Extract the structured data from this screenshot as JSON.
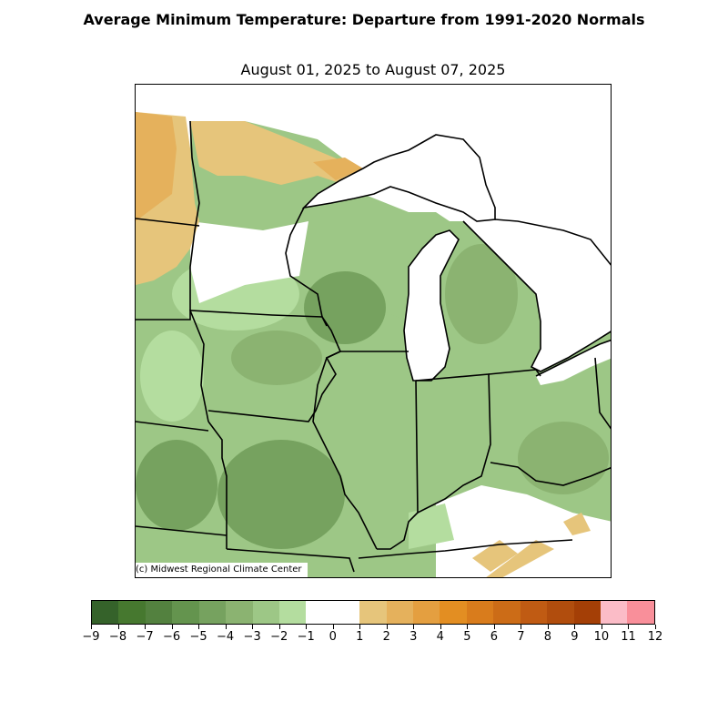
{
  "title": "Average Minimum Temperature: Departure from 1991-2020 Normals",
  "subtitle": "August 01, 2025 to August 07, 2025",
  "credit": "(c) Midwest Regional Climate Center",
  "colorbar": {
    "ticks": [
      "−9",
      "−8",
      "−7",
      "−6",
      "−5",
      "−4",
      "−3",
      "−2",
      "−1",
      "0",
      "1",
      "2",
      "3",
      "4",
      "5",
      "6",
      "7",
      "8",
      "9",
      "10",
      "11",
      "12"
    ],
    "colors": [
      "#35622a",
      "#46782f",
      "#53813f",
      "#64944e",
      "#76a25f",
      "#8bb371",
      "#9dc786",
      "#b4dd9f",
      "#ffffff",
      "#ffffff",
      "#e6c57b",
      "#e5b15c",
      "#e49f40",
      "#e38e22",
      "#d97c1c",
      "#cc6c17",
      "#c05b13",
      "#b14d0d",
      "#a43f06",
      "#fbbcc7",
      "#f98f9a"
    ]
  }
}
